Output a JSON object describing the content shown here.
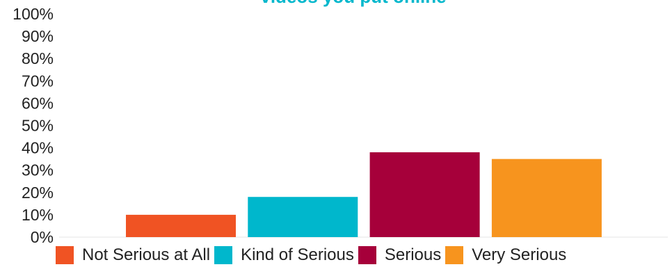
{
  "chart_data": {
    "type": "bar",
    "title": "videos you put online",
    "categories": [
      "Not Serious at All",
      "Kind of Serious",
      "Serious",
      "Very Serious"
    ],
    "values": [
      10,
      18,
      38,
      35
    ],
    "colors": [
      "#f05323",
      "#00b7cc",
      "#a6003a",
      "#f7941e"
    ],
    "ylim": [
      0,
      100
    ],
    "yticks": [
      "0%",
      "10%",
      "20%",
      "30%",
      "40%",
      "50%",
      "60%",
      "70%",
      "80%",
      "90%",
      "100%"
    ],
    "title_color": "#00b7cc",
    "grid": false,
    "legend": {
      "placement": "bottom",
      "entries": [
        "Not Serious at All",
        "Kind of Serious",
        "Serious",
        "Very Serious"
      ]
    }
  }
}
